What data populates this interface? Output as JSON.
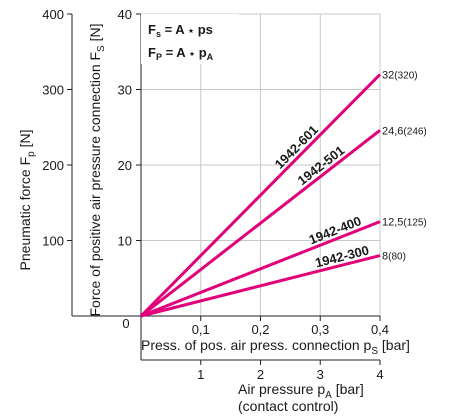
{
  "chart_data": {
    "type": "line",
    "formulas": {
      "line1": {
        "a": "F",
        "a_sub": "s",
        "b": " = A ",
        "op": "⋆",
        "c": " ps",
        "c_sub": ""
      },
      "line2": {
        "a": "F",
        "a_sub": "P",
        "b": " = A ",
        "op": "⋆",
        "c": " p",
        "c_sub": "A"
      }
    },
    "y_outer": {
      "title": "Pneumatic force F",
      "title_sub": "p",
      "title_unit": " [N]",
      "ticks": [
        "100",
        "200",
        "300",
        "400"
      ],
      "range": [
        0,
        400
      ]
    },
    "y_inner": {
      "title": "Force of positive air pressure connection F",
      "title_sub": "S",
      "title_unit": " [N]",
      "ticks": [
        "10",
        "20",
        "30",
        "40"
      ],
      "range": [
        0,
        40
      ]
    },
    "x_inner": {
      "title": "Press. of pos. air press. connection p",
      "title_sub": "S",
      "title_unit": " [bar]",
      "ticks": [
        "0,1",
        "0,2",
        "0,3",
        "0,4"
      ],
      "range": [
        0,
        0.4
      ]
    },
    "x_outer": {
      "title": "Air pressure p",
      "title_sub": "A",
      "title_unit": " [bar]",
      "title_line2": "(contact control)",
      "ticks": [
        "1",
        "2",
        "3",
        "4"
      ],
      "range": [
        0,
        4
      ]
    },
    "origin_label": "0",
    "series": [
      {
        "name": "1942-601",
        "x": [
          0,
          0.4
        ],
        "y": [
          0,
          32
        ],
        "end_label": "32",
        "end_label_sub": "(320)"
      },
      {
        "name": "1942-501",
        "x": [
          0,
          0.4
        ],
        "y": [
          0,
          24.6
        ],
        "end_label": "24,6",
        "end_label_sub": "(246)"
      },
      {
        "name": "1942-400",
        "x": [
          0,
          0.4
        ],
        "y": [
          0,
          12.5
        ],
        "end_label": "12,5",
        "end_label_sub": "(125)"
      },
      {
        "name": "1942-300",
        "x": [
          0,
          0.4
        ],
        "y": [
          0,
          8
        ],
        "end_label": "8",
        "end_label_sub": "(80)"
      }
    ],
    "series_color": "#e2007a",
    "grid": true
  }
}
